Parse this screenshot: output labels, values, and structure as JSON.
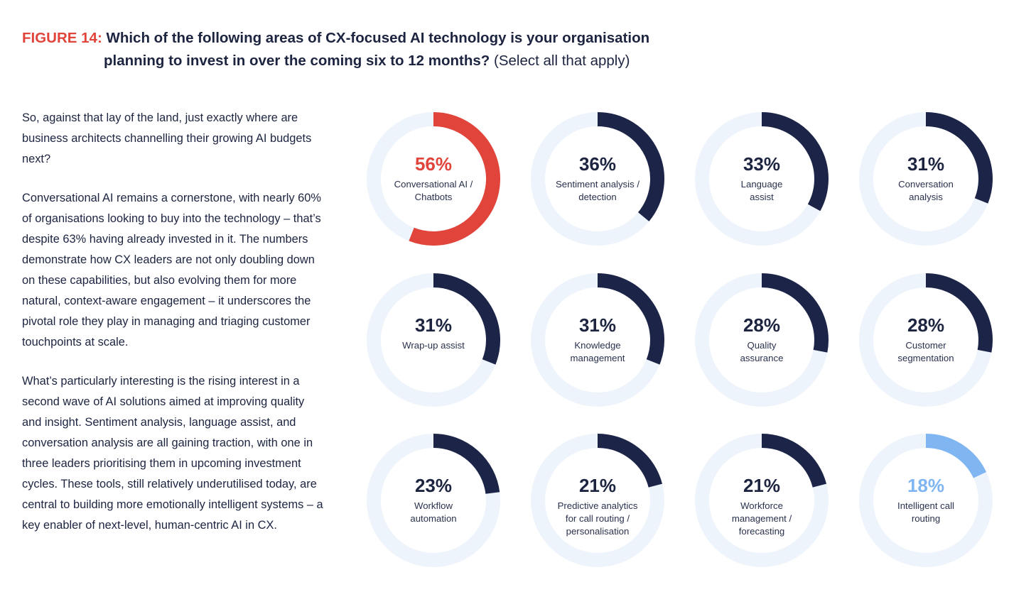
{
  "figure": {
    "label": "FIGURE 14:",
    "question_line1": "Which of the following areas of CX-focused AI technology is your organisation",
    "question_line2": "planning to invest in over the coming six to 12 months?",
    "note": "(Select all that apply)"
  },
  "body": {
    "p1": "So, against that lay of the land, just exactly where are business architects channelling their growing AI budgets next?",
    "p2": "Conversational AI remains a cornerstone, with nearly 60% of organisations looking to buy into the technology – that’s despite 63% having already invested in it. The numbers demonstrate how CX leaders are not only doubling down on these capabilities, but also evolving them for more natural, context-aware engagement – it underscores the pivotal role they play in managing and triaging customer touchpoints at scale.",
    "p3": "What’s particularly interesting is the rising interest in a second wave of AI solutions aimed at improving quality and insight. Sentiment analysis, language assist, and conversation analysis are all gaining traction, with one in three leaders prioritising them in upcoming investment cycles. These tools, still relatively underutilised today, are central to building more emotionally intelligent systems – a key enabler of next-level, human-centric AI in CX."
  },
  "colors": {
    "track": "#eef4fb",
    "highlight_red": "#e0443a",
    "navy": "#1c2448",
    "light_blue": "#7fb6f2"
  },
  "chart_data": {
    "type": "donut",
    "title": "Which of the following areas of CX-focused AI technology is your organisation planning to invest in over the coming six to 12 months?",
    "max": 100,
    "items": [
      {
        "label": "Conversational AI / Chatbots",
        "lines": [
          "Conversational AI /",
          "Chatbots"
        ],
        "value": 56,
        "display": "56%",
        "color": "#e0443a"
      },
      {
        "label": "Sentiment analysis / detection",
        "lines": [
          "Sentiment analysis /",
          "detection"
        ],
        "value": 36,
        "display": "36%",
        "color": "#1c2448"
      },
      {
        "label": "Language assist",
        "lines": [
          "Language",
          "assist"
        ],
        "value": 33,
        "display": "33%",
        "color": "#1c2448"
      },
      {
        "label": "Conversation analysis",
        "lines": [
          "Conversation",
          "analysis"
        ],
        "value": 31,
        "display": "31%",
        "color": "#1c2448"
      },
      {
        "label": "Wrap-up assist",
        "lines": [
          "Wrap-up assist"
        ],
        "value": 31,
        "display": "31%",
        "color": "#1c2448"
      },
      {
        "label": "Knowledge management",
        "lines": [
          "Knowledge",
          "management"
        ],
        "value": 31,
        "display": "31%",
        "color": "#1c2448"
      },
      {
        "label": "Quality assurance",
        "lines": [
          "Quality",
          "assurance"
        ],
        "value": 28,
        "display": "28%",
        "color": "#1c2448"
      },
      {
        "label": "Customer segmentation",
        "lines": [
          "Customer",
          "segmentation"
        ],
        "value": 28,
        "display": "28%",
        "color": "#1c2448"
      },
      {
        "label": "Workflow automation",
        "lines": [
          "Workflow",
          "automation"
        ],
        "value": 23,
        "display": "23%",
        "color": "#1c2448"
      },
      {
        "label": "Predictive analytics for call routing / personalisation",
        "lines": [
          "Predictive analytics",
          "for call routing /",
          "personalisation"
        ],
        "value": 21,
        "display": "21%",
        "color": "#1c2448"
      },
      {
        "label": "Workforce management / forecasting",
        "lines": [
          "Workforce",
          "management /",
          "forecasting"
        ],
        "value": 21,
        "display": "21%",
        "color": "#1c2448"
      },
      {
        "label": "Intelligent call routing",
        "lines": [
          "Intelligent call",
          "routing"
        ],
        "value": 18,
        "display": "18%",
        "color": "#7fb6f2"
      }
    ]
  }
}
